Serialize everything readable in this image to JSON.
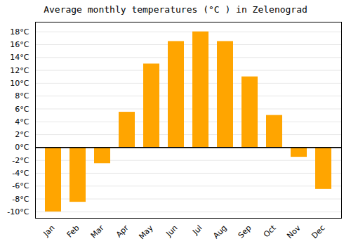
{
  "chart_data": {
    "type": "bar",
    "title": "Average monthly temperatures (°C ) in Zelenograd",
    "categories": [
      "Jan",
      "Feb",
      "Mar",
      "Apr",
      "May",
      "Jun",
      "Jul",
      "Aug",
      "Sep",
      "Oct",
      "Nov",
      "Dec"
    ],
    "values": [
      -10,
      -8.5,
      -2.5,
      5.5,
      13,
      16.5,
      18,
      16.5,
      11,
      5,
      -1.5,
      -6.5
    ],
    "color": "#FFA500",
    "ylim": [
      -11,
      19.5
    ],
    "yticks": [
      {
        "value": -10,
        "label": "-10°C"
      },
      {
        "value": -8,
        "label": "-8°C"
      },
      {
        "value": -6,
        "label": "-6°C"
      },
      {
        "value": -4,
        "label": "-4°C"
      },
      {
        "value": -2,
        "label": "-2°C"
      },
      {
        "value": 0,
        "label": "0°C"
      },
      {
        "value": 2,
        "label": "2°C"
      },
      {
        "value": 4,
        "label": "4°C"
      },
      {
        "value": 6,
        "label": "6°C"
      },
      {
        "value": 8,
        "label": "8°C"
      },
      {
        "value": 10,
        "label": "10°C"
      },
      {
        "value": 12,
        "label": "12°C"
      },
      {
        "value": 14,
        "label": "14°C"
      },
      {
        "value": 16,
        "label": "16°C"
      },
      {
        "value": 18,
        "label": "18°C"
      }
    ],
    "grid": true
  }
}
